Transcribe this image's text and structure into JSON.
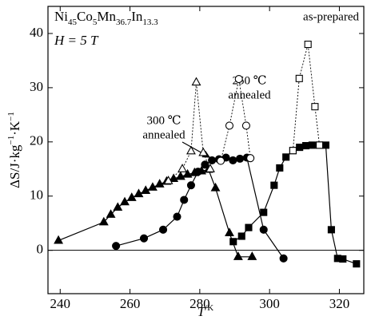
{
  "chart_data": {
    "type": "scatter",
    "xlabel_parts": [
      "T",
      "/K"
    ],
    "ylabel_parts": [
      "ΔS/J·kg",
      "−1",
      "·K",
      "−1"
    ],
    "formula_parts": [
      "Ni",
      "45",
      "Co",
      "5",
      "Mn",
      "36.7",
      "In",
      "13.3"
    ],
    "field_label": "H = 5 T",
    "sample_label": "as-prepared",
    "annotation_250": [
      "250 ℃",
      "annealed"
    ],
    "annotation_300": [
      "300 ℃",
      "annealed"
    ],
    "xlim": [
      236.5,
      327
    ],
    "ylim": [
      -8,
      45
    ],
    "xticks": [
      240,
      260,
      280,
      300,
      320
    ],
    "yticks": [
      0,
      10,
      20,
      30,
      40
    ],
    "series": [
      {
        "marker": "triangle",
        "filled": true,
        "line": "solid",
        "color": "#000000",
        "x": [
          239.5,
          252.5,
          254.5,
          256.5,
          258.5,
          260.5,
          262.5,
          264.5,
          266.5,
          268.5,
          270.5,
          272.5,
          274.5,
          276.5,
          278.5,
          280.5,
          282.5,
          284.5,
          288.5,
          291,
          295
        ],
        "values": [
          1.8,
          5.2,
          6.6,
          7.9,
          8.9,
          9.7,
          10.4,
          11.0,
          11.6,
          12.2,
          12.7,
          13.2,
          13.6,
          14.0,
          14.3,
          14.6,
          14.9,
          11.5,
          3.2,
          -1.2,
          -1.2
        ]
      },
      {
        "marker": "circle",
        "filled": true,
        "line": "solid",
        "color": "#000000",
        "x": [
          256,
          264,
          269.5,
          273.5,
          275.5,
          277.5,
          279.5,
          281.5,
          283.5,
          285.5,
          287.5,
          289.5,
          291.5,
          293.5,
          298.3,
          304
        ],
        "values": [
          0.8,
          2.2,
          3.8,
          6.2,
          9.3,
          12,
          14.5,
          15.8,
          16.6,
          16.8,
          17.1,
          16.6,
          16.9,
          17.1,
          3.8,
          -1.5
        ]
      },
      {
        "marker": "square",
        "filled": true,
        "line": "solid",
        "color": "#000000",
        "x": [
          289.6,
          292,
          294,
          298.3,
          301.3,
          302.9,
          304.7,
          306.7,
          308.6,
          310.4,
          312.2,
          314.3,
          316.1,
          317.7,
          319.5,
          321,
          324.9
        ],
        "values": [
          1.6,
          2.6,
          4.2,
          7,
          12,
          15.2,
          17.2,
          18.4,
          19,
          19.3,
          19.4,
          19.4,
          19.4,
          3.8,
          -1.5,
          -1.6,
          -2.5
        ]
      },
      {
        "marker": "triangle",
        "filled": false,
        "line": "dotted",
        "color": "#000000",
        "x": [
          271,
          275,
          277.5,
          279,
          281,
          283
        ],
        "values": [
          12.8,
          15,
          18.3,
          31,
          18,
          15
        ]
      },
      {
        "marker": "circle",
        "filled": false,
        "line": "dotted",
        "color": "#000000",
        "x": [
          286,
          288.5,
          291.2,
          293.3,
          294.5
        ],
        "values": [
          16.5,
          23,
          31.6,
          23,
          17
        ]
      },
      {
        "marker": "square",
        "filled": false,
        "line": "dotted",
        "color": "#000000",
        "x": [
          306.7,
          308.5,
          311,
          313,
          314.3
        ],
        "values": [
          18.4,
          31.7,
          38,
          26.5,
          19.4
        ]
      }
    ]
  }
}
